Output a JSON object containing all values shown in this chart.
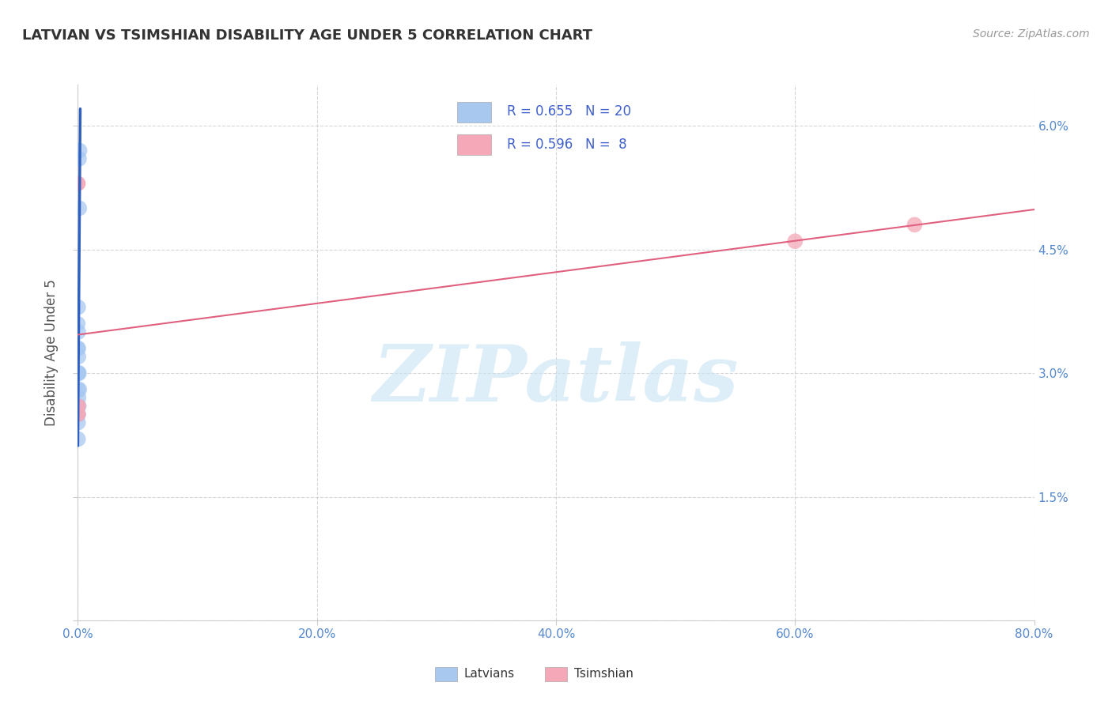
{
  "title": "LATVIAN VS TSIMSHIAN DISABILITY AGE UNDER 5 CORRELATION CHART",
  "source": "Source: ZipAtlas.com",
  "ylabel": "Disability Age Under 5",
  "xlim": [
    0.0,
    0.8
  ],
  "ylim": [
    0.0,
    0.065
  ],
  "xticks": [
    0.0,
    0.2,
    0.4,
    0.6,
    0.8
  ],
  "yticks": [
    0.0,
    0.015,
    0.03,
    0.045,
    0.06
  ],
  "ytick_labels": [
    "",
    "1.5%",
    "3.0%",
    "4.5%",
    "6.0%"
  ],
  "xtick_labels": [
    "0.0%",
    "20.0%",
    "40.0%",
    "60.0%",
    "80.0%"
  ],
  "latvian_R": 0.655,
  "latvian_N": 20,
  "tsimshian_R": 0.596,
  "tsimshian_N": 8,
  "latvian_color": "#a8c8f0",
  "tsimshian_color": "#f4a8b8",
  "latvian_line_color": "#3060c0",
  "tsimshian_line_color": "#e06080",
  "latvian_x": [
    0.0002,
    0.0002,
    0.0003,
    0.0003,
    0.0003,
    0.0004,
    0.0004,
    0.0004,
    0.0005,
    0.0005,
    0.0005,
    0.0006,
    0.0006,
    0.0006,
    0.0007,
    0.0008,
    0.0009,
    0.001,
    0.0012,
    0.0014
  ],
  "latvian_y": [
    0.022,
    0.024,
    0.033,
    0.036,
    0.038,
    0.03,
    0.033,
    0.035,
    0.028,
    0.03,
    0.032,
    0.025,
    0.027,
    0.03,
    0.025,
    0.026,
    0.028,
    0.056,
    0.05,
    0.057
  ],
  "tsimshian_x": [
    0.0003,
    0.0004,
    0.0004,
    0.0005,
    0.0005,
    0.0006,
    0.6,
    0.7
  ],
  "tsimshian_y": [
    0.053,
    0.053,
    0.025,
    0.025,
    0.026,
    0.026,
    0.046,
    0.048
  ],
  "latvian_sizes": [
    200,
    200,
    180,
    180,
    200,
    180,
    200,
    200,
    180,
    200,
    200,
    180,
    200,
    220,
    180,
    200,
    220,
    200,
    200,
    200
  ],
  "tsimshian_sizes": [
    180,
    180,
    180,
    180,
    180,
    180,
    200,
    200
  ],
  "legend_latvian_text": "R = 0.655   N = 20",
  "legend_tsimshian_text": "R = 0.596   N =  8",
  "watermark_text": "ZIPatlas",
  "watermark_color": "#c8e4f4",
  "bg_color": "#ffffff",
  "grid_color": "#cccccc",
  "title_color": "#333333",
  "source_color": "#999999",
  "tick_color": "#5588cc",
  "ylabel_color": "#555555"
}
